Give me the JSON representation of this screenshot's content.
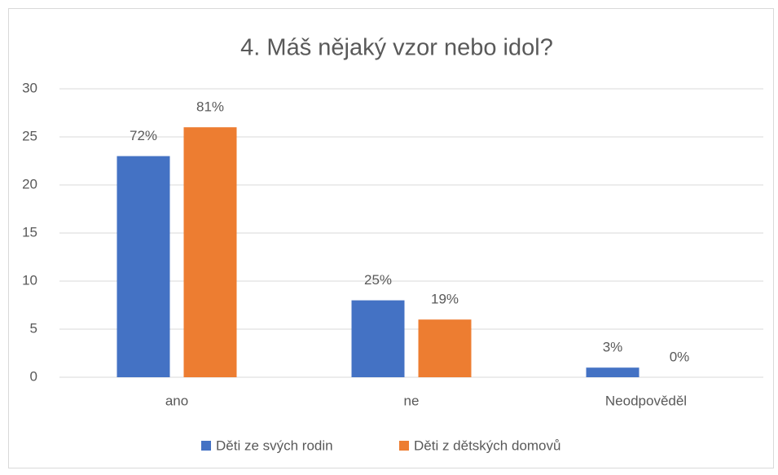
{
  "chart_data": {
    "type": "bar",
    "title": "4. Máš nějaký vzor nebo idol?",
    "categories": [
      "ano",
      "ne",
      "Neodpověděl"
    ],
    "series": [
      {
        "name": "Děti ze svých rodin",
        "color": "#4472c4",
        "values": [
          23,
          8,
          1
        ],
        "value_labels": [
          "72%",
          "25%",
          "3%"
        ]
      },
      {
        "name": "Děti z dětských domovů",
        "color": "#ed7d31",
        "values": [
          26,
          6,
          0
        ],
        "value_labels": [
          "81%",
          "19%",
          "0%"
        ]
      }
    ],
    "ylim": [
      0,
      30
    ],
    "yticks": [
      0,
      5,
      10,
      15,
      20,
      25,
      30
    ],
    "grid": true,
    "legend": "bottom"
  }
}
